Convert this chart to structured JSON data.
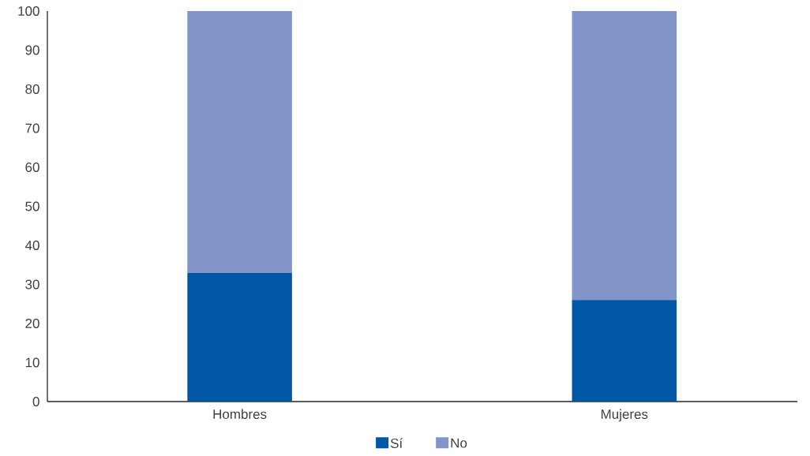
{
  "chart_data": {
    "type": "bar",
    "stacked": true,
    "categories": [
      "Hombres",
      "Mujeres"
    ],
    "series": [
      {
        "name": "Sí",
        "color": "#0057a6",
        "values": [
          33,
          26
        ]
      },
      {
        "name": "No",
        "color": "#8294c8",
        "values": [
          67,
          74
        ]
      }
    ],
    "ylim": [
      0,
      100
    ],
    "yticks": [
      0,
      10,
      20,
      30,
      40,
      50,
      60,
      70,
      80,
      90,
      100
    ],
    "legend": "bottom"
  }
}
